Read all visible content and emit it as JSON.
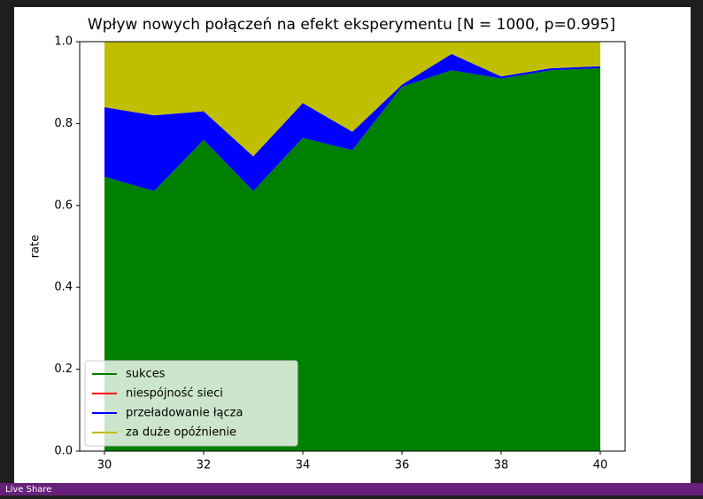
{
  "chart_data": {
    "type": "stackplot",
    "title": "Wpływ nowych połączeń na efekt eksperymentu [N = 1000, p=0.995]",
    "y_label": "rate",
    "x": [
      30,
      31,
      32,
      33,
      34,
      35,
      36,
      37,
      38,
      39,
      40
    ],
    "series": [
      {
        "name": "sukces",
        "color": "#008000",
        "values": [
          0.67,
          0.635,
          0.76,
          0.635,
          0.765,
          0.735,
          0.89,
          0.93,
          0.91,
          0.93,
          0.935
        ]
      },
      {
        "name": "niespójność sieci",
        "color": "#ff0000",
        "values": [
          0,
          0,
          0,
          0,
          0,
          0,
          0,
          0,
          0,
          0,
          0
        ]
      },
      {
        "name": "przeładowanie łącza",
        "color": "#0000ff",
        "values": [
          0.17,
          0.185,
          0.07,
          0.085,
          0.085,
          0.045,
          0.005,
          0.04,
          0.005,
          0.005,
          0.005
        ]
      },
      {
        "name": "za duże opóźnienie",
        "color": "#bfbf00",
        "values": [
          0.16,
          0.18,
          0.17,
          0.28,
          0.15,
          0.22,
          0.105,
          0.03,
          0.085,
          0.065,
          0.06
        ]
      }
    ],
    "xlim": [
      29.5,
      40.5
    ],
    "xticks": [
      30,
      32,
      34,
      36,
      38,
      40
    ],
    "ylim": [
      0,
      1
    ],
    "yticks": [
      {
        "value": 0,
        "label": "0.0"
      },
      0.2,
      0.4,
      0.6,
      0.8,
      {
        "value": 1,
        "label": "1.0"
      }
    ],
    "legend": "lower left"
  },
  "status_bar": {
    "text": "Live Share"
  }
}
